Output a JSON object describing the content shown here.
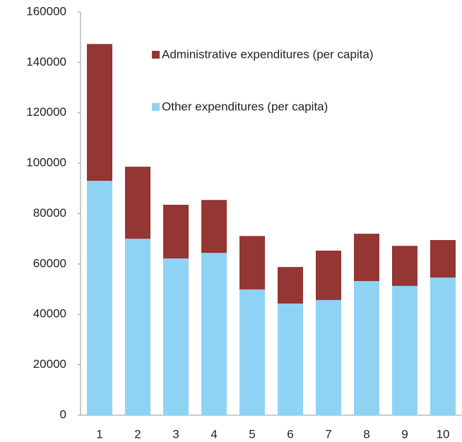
{
  "chart_data": {
    "type": "stacked_bar",
    "categories": [
      "1",
      "2",
      "3",
      "4",
      "5",
      "6",
      "7",
      "8",
      "9",
      "10"
    ],
    "series": [
      {
        "name": "Other expenditures (per capita)",
        "color": "#8fd3f4",
        "values": [
          93000,
          70000,
          62200,
          64400,
          49900,
          44300,
          45700,
          53200,
          51300,
          54600
        ]
      },
      {
        "name": "Administrative expenditures (per capita)",
        "color": "#943634",
        "values": [
          54300,
          28600,
          21300,
          21000,
          21200,
          14500,
          19600,
          18800,
          15900,
          14900
        ]
      }
    ],
    "ylim": [
      0,
      160000
    ],
    "yticks": [
      0,
      20000,
      40000,
      60000,
      80000,
      100000,
      120000,
      140000,
      160000
    ],
    "grid": false
  }
}
